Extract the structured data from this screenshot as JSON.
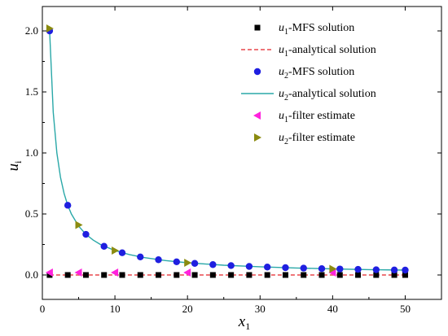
{
  "chart_data": {
    "type": "scatter",
    "xlabel": {
      "main": "x",
      "sub": "1"
    },
    "ylabel": {
      "main": "u",
      "sub": "i"
    },
    "xlim": [
      0,
      55
    ],
    "ylim": [
      -0.2,
      2.2
    ],
    "xticks": [
      "0",
      "10",
      "20",
      "30",
      "40",
      "50"
    ],
    "xtick_values": [
      0,
      10,
      20,
      30,
      40,
      50
    ],
    "yticks": [
      "0.0",
      "0.5",
      "1.0",
      "1.5",
      "2.0"
    ],
    "ytick_values": [
      0,
      0.5,
      1.0,
      1.5,
      2.0
    ],
    "grid": false,
    "legend_position": "top-right",
    "series": [
      {
        "key": "u1_mfs",
        "legend_var": "u",
        "legend_sub": "1",
        "legend_rest": "-MFS solution",
        "marker": "square",
        "color": "#000000",
        "x": [
          1,
          3.5,
          6,
          8.5,
          11,
          13.5,
          16,
          18.5,
          21,
          23.5,
          26,
          28.5,
          31,
          33.5,
          36,
          38.5,
          41,
          43.5,
          46,
          48.5,
          50
        ],
        "y": [
          0,
          0,
          0,
          0,
          0,
          0,
          0,
          0,
          0,
          0,
          0,
          0,
          0,
          0,
          0,
          0,
          0,
          0,
          0,
          0,
          0
        ]
      },
      {
        "key": "u1_analytical",
        "legend_var": "u",
        "legend_sub": "1",
        "legend_rest": "-analytical solution",
        "marker": "dashed-line",
        "color": "#e8474c",
        "x": [
          1,
          50
        ],
        "y": [
          0,
          0
        ]
      },
      {
        "key": "u2_mfs",
        "legend_var": "u",
        "legend_sub": "2",
        "legend_rest": "-MFS solution",
        "marker": "circle",
        "color": "#1f1fe0",
        "x": [
          1,
          3.5,
          6,
          8.5,
          11,
          13.5,
          16,
          18.5,
          21,
          23.5,
          26,
          28.5,
          31,
          33.5,
          36,
          38.5,
          41,
          43.5,
          46,
          48.5,
          50
        ],
        "y": [
          2.0,
          0.571,
          0.333,
          0.235,
          0.182,
          0.148,
          0.125,
          0.108,
          0.095,
          0.085,
          0.077,
          0.07,
          0.065,
          0.06,
          0.056,
          0.052,
          0.049,
          0.046,
          0.043,
          0.041,
          0.04
        ]
      },
      {
        "key": "u2_analytical",
        "legend_var": "u",
        "legend_sub": "2",
        "legend_rest": "-analytical solution",
        "marker": "solid-line",
        "color": "#2aa8a8",
        "x": [
          1,
          1.5,
          2,
          2.5,
          3,
          3.5,
          4,
          5,
          6,
          7,
          8,
          10,
          12,
          14,
          17,
          20,
          25,
          30,
          35,
          40,
          45,
          50
        ],
        "y": [
          2.0,
          1.333,
          1.0,
          0.8,
          0.667,
          0.571,
          0.5,
          0.4,
          0.333,
          0.286,
          0.25,
          0.2,
          0.167,
          0.143,
          0.118,
          0.1,
          0.08,
          0.067,
          0.057,
          0.05,
          0.044,
          0.04
        ]
      },
      {
        "key": "u1_filter",
        "legend_var": "u",
        "legend_sub": "1",
        "legend_rest": "-filter estimate",
        "marker": "triangle-left",
        "color": "#ff22dd",
        "x": [
          1,
          5,
          10,
          20,
          40
        ],
        "y": [
          0.02,
          0.02,
          0.02,
          0.02,
          0.02
        ]
      },
      {
        "key": "u2_filter",
        "legend_var": "u",
        "legend_sub": "2",
        "legend_rest": "-filter estimate",
        "marker": "triangle-right",
        "color": "#8b8b10",
        "x": [
          1,
          5,
          10,
          20,
          40
        ],
        "y": [
          2.02,
          0.41,
          0.2,
          0.1,
          0.05
        ]
      }
    ]
  }
}
